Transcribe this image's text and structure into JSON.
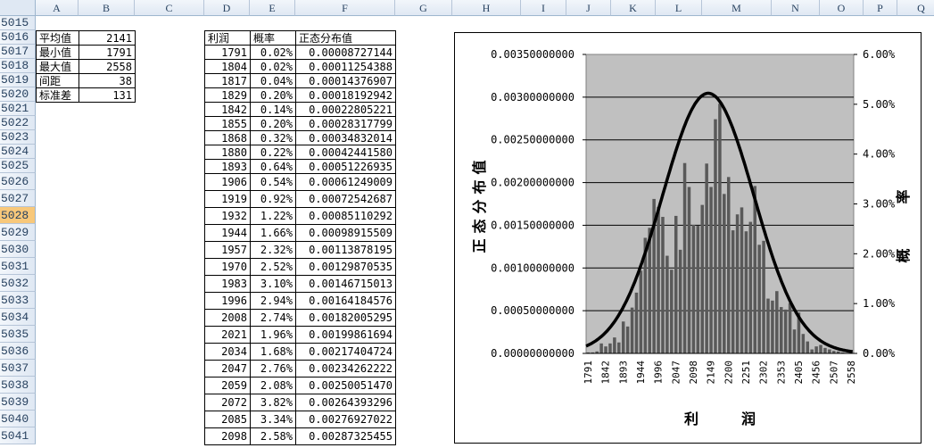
{
  "columns": [
    "A",
    "B",
    "C",
    "D",
    "E",
    "F",
    "G",
    "H",
    "I",
    "J",
    "K",
    "L",
    "M",
    "N",
    "O",
    "P",
    "Q"
  ],
  "rows": [
    "5015",
    "5016",
    "5017",
    "5018",
    "5019",
    "5020",
    "5021",
    "5022",
    "5023",
    "5024",
    "5025",
    "5026",
    "5027",
    "5028",
    "5029",
    "5030",
    "5031",
    "5032",
    "5033",
    "5034",
    "5035",
    "5036",
    "5037",
    "5038",
    "5039",
    "5040",
    "5041"
  ],
  "selected_row": "5028",
  "stats": [
    [
      "平均值",
      "2141"
    ],
    [
      "最小值",
      "1791"
    ],
    [
      "最大值",
      "2558"
    ],
    [
      "间距",
      "38"
    ],
    [
      "标准差",
      "131"
    ]
  ],
  "table": {
    "headers": [
      "利润",
      "概率",
      "正态分布值"
    ],
    "rows": [
      [
        "1791",
        "0.02%",
        "0.00008727144"
      ],
      [
        "1804",
        "0.02%",
        "0.00011254388"
      ],
      [
        "1817",
        "0.04%",
        "0.00014376907"
      ],
      [
        "1829",
        "0.20%",
        "0.00018192942"
      ],
      [
        "1842",
        "0.14%",
        "0.00022805221"
      ],
      [
        "1855",
        "0.20%",
        "0.00028317799"
      ],
      [
        "1868",
        "0.32%",
        "0.00034832014"
      ],
      [
        "1880",
        "0.22%",
        "0.00042441580"
      ],
      [
        "1893",
        "0.64%",
        "0.00051226935"
      ],
      [
        "1906",
        "0.54%",
        "0.00061249009"
      ],
      [
        "1919",
        "0.92%",
        "0.00072542687"
      ],
      [
        "1932",
        "1.22%",
        "0.00085110292"
      ],
      [
        "1944",
        "1.66%",
        "0.00098915509"
      ],
      [
        "1957",
        "2.32%",
        "0.00113878195"
      ],
      [
        "1970",
        "2.52%",
        "0.00129870535"
      ],
      [
        "1983",
        "3.10%",
        "0.00146715013"
      ],
      [
        "1996",
        "2.94%",
        "0.00164184576"
      ],
      [
        "2008",
        "2.74%",
        "0.00182005295"
      ],
      [
        "2021",
        "1.96%",
        "0.00199861694"
      ],
      [
        "2034",
        "1.68%",
        "0.00217404724"
      ],
      [
        "2047",
        "2.76%",
        "0.00234262222"
      ],
      [
        "2059",
        "2.08%",
        "0.00250051470"
      ],
      [
        "2072",
        "3.82%",
        "0.00264393296"
      ],
      [
        "2085",
        "3.34%",
        "0.00276927022"
      ],
      [
        "2098",
        "2.58%",
        "0.00287325455"
      ]
    ]
  },
  "chart_data": {
    "type": "bar+line",
    "xlabel": "利　　　润",
    "ylabel_left": "正态分布值",
    "ylabel_right": "概率",
    "x_tick_labels": [
      "1791",
      "1842",
      "1893",
      "1944",
      "1996",
      "2047",
      "2098",
      "2149",
      "2200",
      "2251",
      "2302",
      "2353",
      "2405",
      "2456",
      "2507",
      "2558"
    ],
    "x_start": 1791,
    "x_end": 2558,
    "left_ticks": [
      "0.00000000000",
      "0.00050000000",
      "0.00100000000",
      "0.00150000000",
      "0.00200000000",
      "0.00250000000",
      "0.00300000000",
      "0.00350000000"
    ],
    "left_range": [
      0,
      0.0035
    ],
    "right_ticks": [
      "0.00%",
      "1.00%",
      "2.00%",
      "3.00%",
      "4.00%",
      "5.00%",
      "6.00%"
    ],
    "right_range": [
      0,
      6
    ],
    "bar_series_percent": [
      0.02,
      0.02,
      0.04,
      0.2,
      0.14,
      0.2,
      0.32,
      0.22,
      0.64,
      0.54,
      0.92,
      1.22,
      1.66,
      2.32,
      2.52,
      3.1,
      2.94,
      2.74,
      1.96,
      1.68,
      2.76,
      2.08,
      3.82,
      3.34,
      2.58,
      2.56,
      2.98,
      3.81,
      3.34,
      4.7,
      5.01,
      3.2,
      3.54,
      2.47,
      2.79,
      2.93,
      2.45,
      2.64,
      3.36,
      2.18,
      2.26,
      1.1,
      1.06,
      1.25,
      0.93,
      0.88,
      1.01,
      0.48,
      0.82,
      0.39,
      0.24,
      0.08,
      0.14,
      0.17,
      0.11,
      0.08,
      0.05,
      0.04,
      0.02,
      0.01,
      0.01
    ],
    "line_mean": 2141,
    "line_sd": 131,
    "grid": true,
    "colors": {
      "plot_bg": "#c0c0c0",
      "bars": "#595959",
      "line": "#000000"
    }
  }
}
